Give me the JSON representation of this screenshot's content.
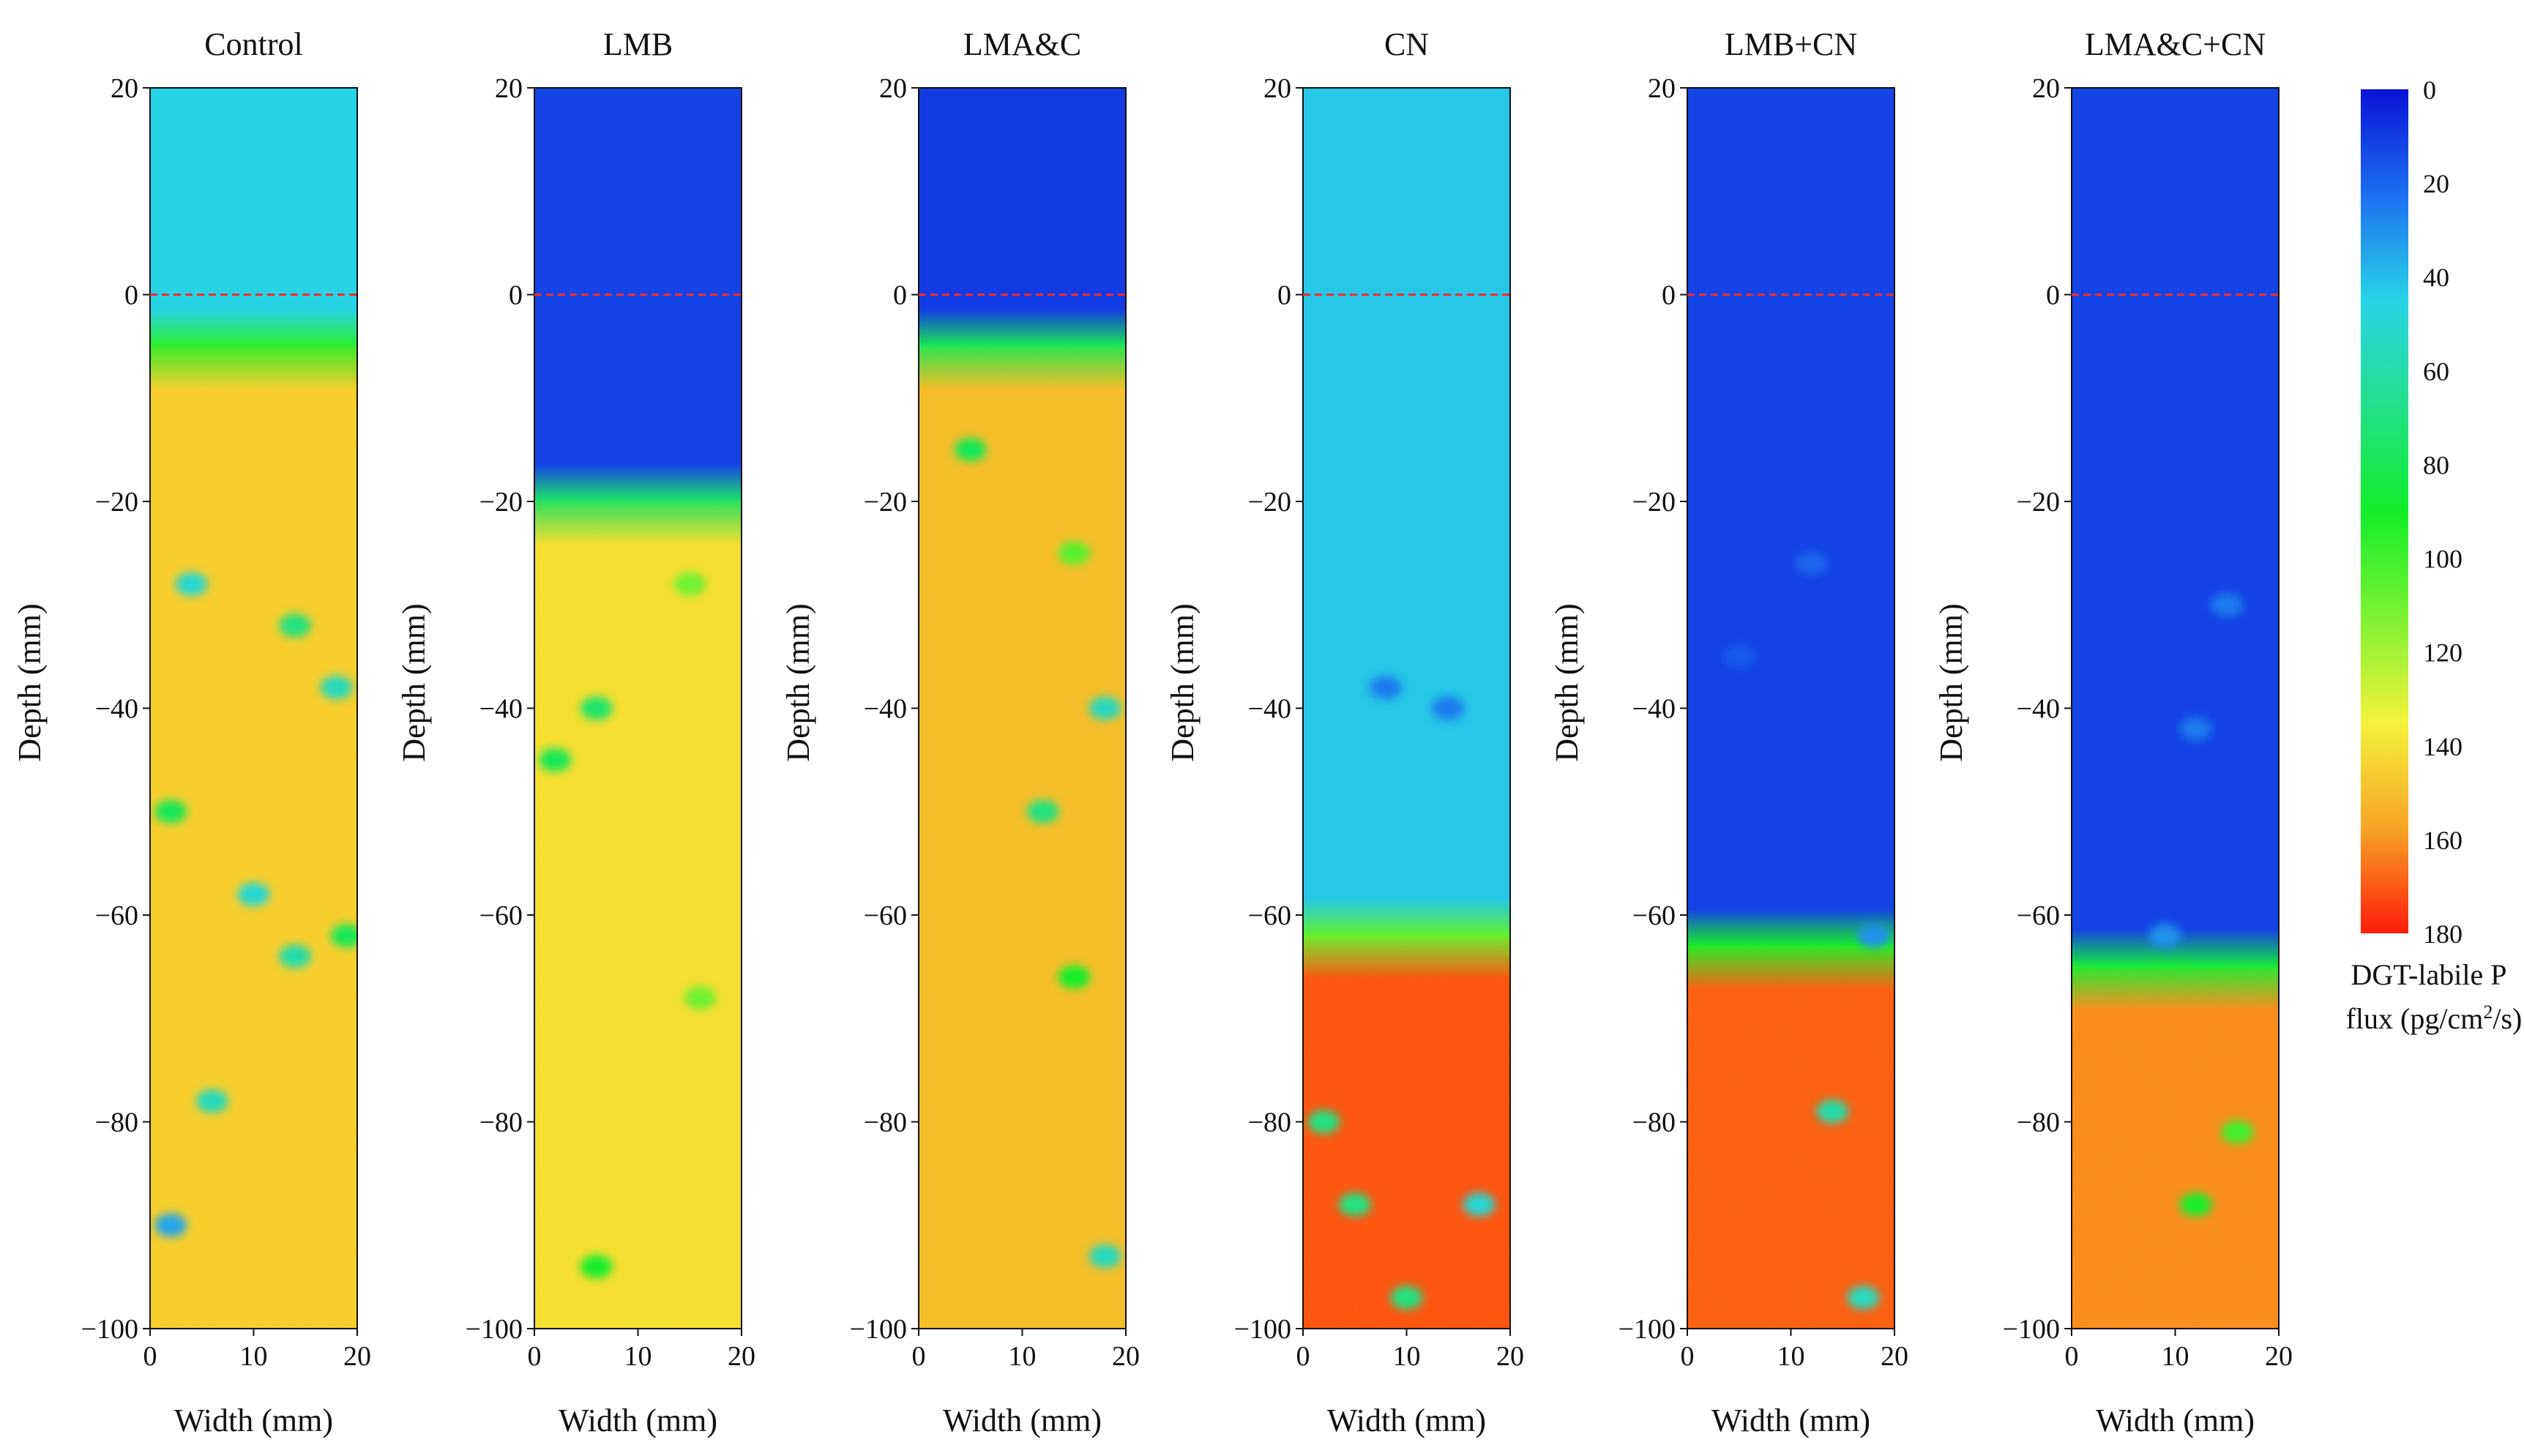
{
  "chart_data": {
    "type": "heatmap",
    "x_label": "Width (mm)",
    "y_label": "Depth (mm)",
    "x_range": [
      0,
      20
    ],
    "y_range": [
      -100,
      20
    ],
    "x_ticks": [
      "0",
      "10",
      "20"
    ],
    "y_ticks": [
      "20",
      "0",
      "−20",
      "−40",
      "−60",
      "−80",
      "−100"
    ],
    "reference_line": {
      "y": 0,
      "style": "dashed",
      "color": "#ff2a2a"
    },
    "colorbar": {
      "label_line1": "DGT-labile P",
      "label_line2_prefix": "flux (pg/cm",
      "label_line2_sup": "2",
      "label_line2_suffix": "/s)",
      "ticks": [
        "0",
        "20",
        "40",
        "60",
        "80",
        "100",
        "120",
        "140",
        "160",
        "180"
      ],
      "range": [
        0,
        180
      ],
      "colors": [
        "#0a12d8",
        "#1c6ff0",
        "#27d4e6",
        "#22e08a",
        "#12ee2a",
        "#7cf232",
        "#f4f23a",
        "#f6a526",
        "#ff1c0a"
      ]
    },
    "panels": [
      {
        "title": "Control",
        "top_value": 45,
        "boundary_depth": -5,
        "bottom_value": 145,
        "anomalies": [
          {
            "x": 4,
            "y": -28,
            "v": 50
          },
          {
            "x": 14,
            "y": -32,
            "v": 70
          },
          {
            "x": 18,
            "y": -38,
            "v": 55
          },
          {
            "x": 10,
            "y": -58,
            "v": 50
          },
          {
            "x": 2,
            "y": -90,
            "v": 35
          },
          {
            "x": 6,
            "y": -78,
            "v": 55
          },
          {
            "x": 2,
            "y": -50,
            "v": 80
          },
          {
            "x": 14,
            "y": -64,
            "v": 60
          },
          {
            "x": 19,
            "y": -62,
            "v": 80
          }
        ]
      },
      {
        "title": "LMB",
        "top_value": 12,
        "boundary_depth": -20,
        "bottom_value": 140,
        "anomalies": [
          {
            "x": 6,
            "y": -40,
            "v": 75
          },
          {
            "x": 2,
            "y": -45,
            "v": 80
          },
          {
            "x": 15,
            "y": -28,
            "v": 110
          },
          {
            "x": 6,
            "y": -94,
            "v": 90
          },
          {
            "x": 16,
            "y": -68,
            "v": 110
          }
        ]
      },
      {
        "title": "LMA&C",
        "top_value": 10,
        "boundary_depth": -5,
        "bottom_value": 150,
        "anomalies": [
          {
            "x": 5,
            "y": -15,
            "v": 80
          },
          {
            "x": 15,
            "y": -25,
            "v": 105
          },
          {
            "x": 12,
            "y": -50,
            "v": 70
          },
          {
            "x": 18,
            "y": -93,
            "v": 55
          },
          {
            "x": 18,
            "y": -40,
            "v": 55
          },
          {
            "x": 15,
            "y": -66,
            "v": 90
          }
        ]
      },
      {
        "title": "CN",
        "top_value": 42,
        "boundary_depth": -62,
        "bottom_value": 172,
        "anomalies": [
          {
            "x": 5,
            "y": -88,
            "v": 70
          },
          {
            "x": 17,
            "y": -88,
            "v": 50
          },
          {
            "x": 2,
            "y": -80,
            "v": 70
          },
          {
            "x": 8,
            "y": -38,
            "v": 25
          },
          {
            "x": 14,
            "y": -40,
            "v": 25
          },
          {
            "x": 10,
            "y": -97,
            "v": 70
          }
        ]
      },
      {
        "title": "LMB+CN",
        "top_value": 12,
        "boundary_depth": -63,
        "bottom_value": 170,
        "anomalies": [
          {
            "x": 14,
            "y": -79,
            "v": 60
          },
          {
            "x": 17,
            "y": -97,
            "v": 55
          },
          {
            "x": 5,
            "y": -35,
            "v": 18
          },
          {
            "x": 12,
            "y": -26,
            "v": 20
          },
          {
            "x": 18,
            "y": -62,
            "v": 30
          }
        ]
      },
      {
        "title": "LMA&C+CN",
        "top_value": 12,
        "boundary_depth": -65,
        "bottom_value": 162,
        "anomalies": [
          {
            "x": 12,
            "y": -88,
            "v": 90
          },
          {
            "x": 16,
            "y": -81,
            "v": 100
          },
          {
            "x": 12,
            "y": -42,
            "v": 25
          },
          {
            "x": 15,
            "y": -30,
            "v": 25
          },
          {
            "x": 9,
            "y": -62,
            "v": 30
          }
        ]
      }
    ]
  }
}
